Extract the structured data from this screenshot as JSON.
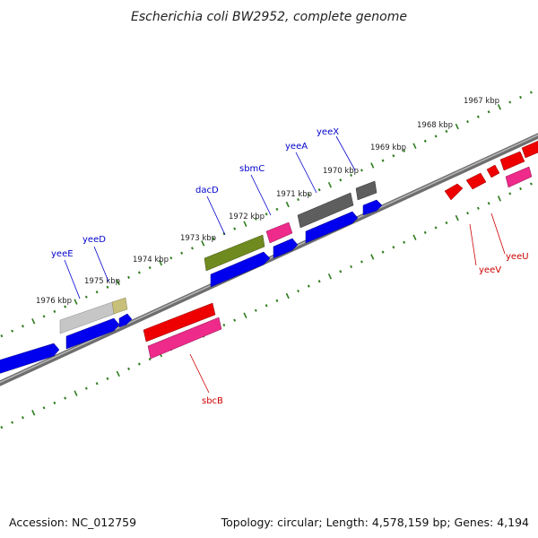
{
  "title": "Escherichia coli BW2952, complete genome",
  "footer": {
    "accession": "Accession: NC_012759",
    "summary": "Topology: circular; Length: 4,578,159 bp; Genes: 4,194"
  },
  "colors": {
    "background": "#ffffff",
    "backbone": "#8a8a8a",
    "tick": "#2e7d1e",
    "label_forward": "#0000cc",
    "label_reverse": "#cc0000",
    "blue": "#0000ee",
    "red": "#ee0000",
    "pink": "#ee2a8a",
    "olive": "#6f8a1e",
    "dark_grey": "#5e5e5e",
    "light_grey": "#c6c6c6",
    "khaki": "#c8c07a"
  },
  "scale_labels": [
    "1967 kbp",
    "1968 kbp",
    "1969 kbp",
    "1970 kbp",
    "1971 kbp",
    "1972 kbp",
    "1973 kbp",
    "1974 kbp",
    "1975 kbp",
    "1976 kbp"
  ],
  "gene_labels": {
    "forward": [
      "yeeE",
      "yeeD",
      "dacD",
      "sbmC",
      "yeeA",
      "yeeX"
    ],
    "reverse": [
      "sbcB",
      "yeeV",
      "yeeU"
    ]
  }
}
